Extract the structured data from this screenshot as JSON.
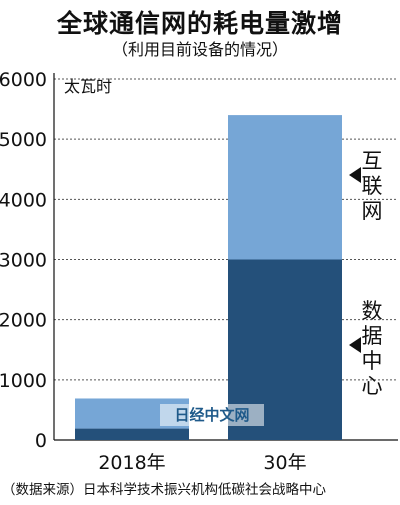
{
  "chart_data": {
    "type": "bar",
    "stacked": true,
    "title": "全球通信网的耗电量激增",
    "subtitle": "（利用目前设备的情况）",
    "unit": "太瓦时",
    "categories": [
      "2018年",
      "30年"
    ],
    "ylim": [
      0,
      6000
    ],
    "yticks": [
      "0",
      "1000",
      "2000",
      "3000",
      "4000",
      "5000",
      "6000"
    ],
    "series": [
      {
        "name": "数据中心",
        "label_chars": [
          "数",
          "据",
          "中",
          "心"
        ],
        "values": [
          190,
          3000
        ],
        "color": "#24507a"
      },
      {
        "name": "互联网",
        "label_chars": [
          "互",
          "联",
          "网"
        ],
        "values": [
          500,
          2400
        ],
        "color": "#76a6d6"
      }
    ],
    "grid": true,
    "legend": "right"
  },
  "source": "（数据来源）日本科学技术振兴机构低碳社会战略中心",
  "watermark": "日经中文网"
}
